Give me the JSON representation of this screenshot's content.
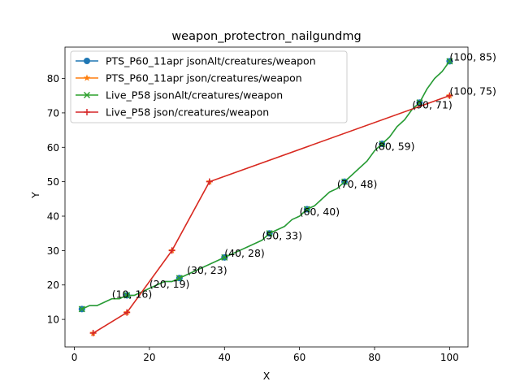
{
  "chart_data": {
    "type": "line",
    "title": "weapon_protectron_nailgundmg",
    "xlabel": "X",
    "ylabel": "Y",
    "xlim": [
      -2.5,
      104.9
    ],
    "ylim": [
      2.0,
      89.1
    ],
    "x_ticks": [
      0,
      20,
      40,
      60,
      80,
      100
    ],
    "y_ticks": [
      10,
      20,
      30,
      40,
      50,
      60,
      70,
      80
    ],
    "x_tick_labels": [
      "0",
      "20",
      "40",
      "60",
      "80",
      "100"
    ],
    "y_tick_labels": [
      "10",
      "20",
      "30",
      "40",
      "50",
      "60",
      "70",
      "80"
    ],
    "grid": false,
    "legend_position": "top-left",
    "series": [
      {
        "name": "PTS_P60_11apr jsonAlt/creatures/weapon",
        "color": "#1f77b4",
        "marker": "circle",
        "x": [
          2,
          4,
          6,
          8,
          10,
          12,
          14,
          16,
          18,
          20,
          22,
          24,
          26,
          28,
          30,
          32,
          34,
          36,
          38,
          40,
          42,
          44,
          46,
          48,
          50,
          52,
          54,
          56,
          58,
          60,
          62,
          64,
          66,
          68,
          70,
          72,
          74,
          76,
          78,
          80,
          82,
          84,
          86,
          88,
          90,
          92,
          94,
          96,
          98,
          100
        ],
        "y": [
          13,
          14,
          14,
          15,
          16,
          16,
          17,
          17,
          18,
          19,
          20,
          21,
          21,
          22,
          23,
          24,
          25,
          26,
          27,
          28,
          29,
          30,
          31,
          32,
          33,
          35,
          36,
          37,
          39,
          40,
          42,
          43,
          45,
          47,
          48,
          50,
          52,
          54,
          56,
          59,
          61,
          63,
          66,
          68,
          71,
          73,
          77,
          80,
          82,
          85
        ],
        "marker_x": [
          2,
          14,
          28,
          40,
          52,
          62,
          72,
          82,
          92,
          100
        ],
        "marker_y": [
          13,
          17,
          22,
          28,
          35,
          42,
          50,
          61,
          73,
          85
        ]
      },
      {
        "name": "PTS_P60_11apr json/creatures/weapon",
        "color": "#ff7f0e",
        "marker": "star",
        "x": [
          5,
          14,
          26,
          36,
          100
        ],
        "y": [
          6,
          12,
          30,
          50,
          75
        ]
      },
      {
        "name": "Live_P58 jsonAlt/creatures/weapon",
        "color": "#2ca02c",
        "marker": "x",
        "x": [
          2,
          4,
          6,
          8,
          10,
          12,
          14,
          16,
          18,
          20,
          22,
          24,
          26,
          28,
          30,
          32,
          34,
          36,
          38,
          40,
          42,
          44,
          46,
          48,
          50,
          52,
          54,
          56,
          58,
          60,
          62,
          64,
          66,
          68,
          70,
          72,
          74,
          76,
          78,
          80,
          82,
          84,
          86,
          88,
          90,
          92,
          94,
          96,
          98,
          100
        ],
        "y": [
          13,
          14,
          14,
          15,
          16,
          16,
          17,
          17,
          18,
          19,
          20,
          21,
          21,
          22,
          23,
          24,
          25,
          26,
          27,
          28,
          29,
          30,
          31,
          32,
          33,
          35,
          36,
          37,
          39,
          40,
          42,
          43,
          45,
          47,
          48,
          50,
          52,
          54,
          56,
          59,
          61,
          63,
          66,
          68,
          71,
          73,
          77,
          80,
          82,
          85
        ],
        "marker_x": [
          2,
          14,
          28,
          40,
          52,
          62,
          72,
          82,
          92,
          100
        ],
        "marker_y": [
          13,
          17,
          22,
          28,
          35,
          42,
          50,
          61,
          73,
          85
        ]
      },
      {
        "name": "Live_P58 json/creatures/weapon",
        "color": "#d62728",
        "marker": "plus",
        "x": [
          5,
          14,
          26,
          36,
          100
        ],
        "y": [
          6,
          12,
          30,
          50,
          75
        ]
      }
    ],
    "annotations": [
      {
        "text": "(10, 16)",
        "x": 10,
        "y": 16
      },
      {
        "text": "(20, 19)",
        "x": 20,
        "y": 19
      },
      {
        "text": "(30, 23)",
        "x": 30,
        "y": 23
      },
      {
        "text": "(40, 28)",
        "x": 40,
        "y": 28
      },
      {
        "text": "(50, 33)",
        "x": 50,
        "y": 33
      },
      {
        "text": "(60, 40)",
        "x": 60,
        "y": 40
      },
      {
        "text": "(70, 48)",
        "x": 70,
        "y": 48
      },
      {
        "text": "(80, 59)",
        "x": 80,
        "y": 59
      },
      {
        "text": "(90, 71)",
        "x": 90,
        "y": 71
      },
      {
        "text": "(100, 85)",
        "x": 100,
        "y": 85
      },
      {
        "text": "(100, 75)",
        "x": 100,
        "y": 75
      }
    ]
  }
}
